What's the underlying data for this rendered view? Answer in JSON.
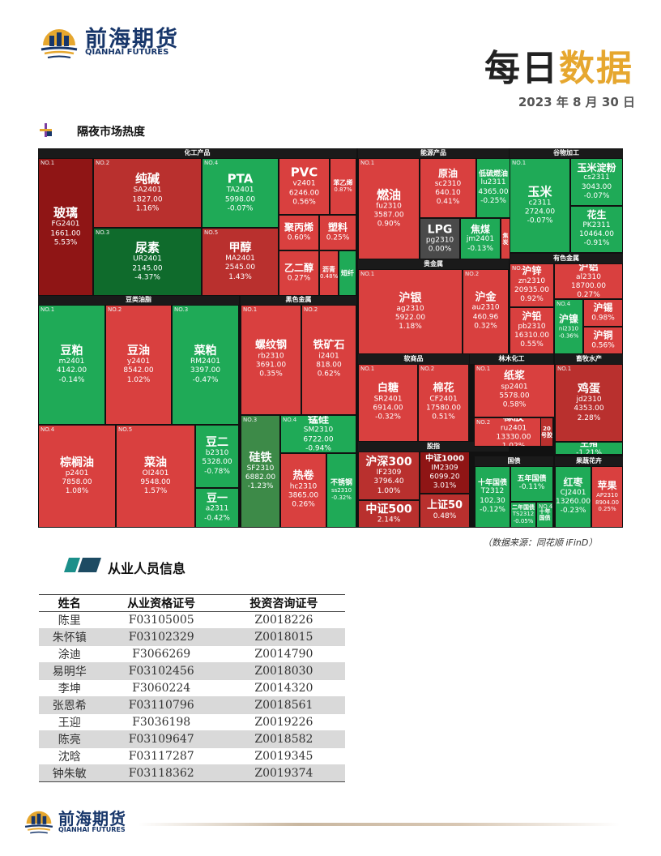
{
  "brand": {
    "name_cn": "前海期货",
    "name_en": "QIANHAI FUTURES"
  },
  "header": {
    "title_part1": "每日",
    "title_part2": "数据",
    "date": "2023 年 8 月 30 日"
  },
  "section1": {
    "title": "隔夜市场热度"
  },
  "heatmap": {
    "groups": {
      "chem": "化工产品",
      "energy": "能源产品",
      "grain": "谷物加工",
      "color_metal": "有色金属",
      "precious": "贵金属",
      "bean": "豆类油脂",
      "black": "黑色金属",
      "soft": "软商品",
      "forest": "林木化工",
      "animal": "畜牧水产",
      "stock": "股指",
      "bond": "国债",
      "fruit": "果蔬花卉"
    },
    "tiles": [
      {
        "no": "NO.1",
        "name": "玻璃",
        "code": "FG2401",
        "price": "1661.00",
        "pct": "5.53%"
      },
      {
        "no": "NO.2",
        "name": "纯碱",
        "code": "SA2401",
        "price": "1827.00",
        "pct": "1.16%"
      },
      {
        "no": "NO.3",
        "name": "尿素",
        "code": "UR2401",
        "price": "2145.00",
        "pct": "-4.37%"
      },
      {
        "no": "NO.4",
        "name": "PTA",
        "code": "TA2401",
        "price": "5998.00",
        "pct": "-0.07%"
      },
      {
        "no": "NO.5",
        "name": "甲醇",
        "code": "MA2401",
        "price": "2545.00",
        "pct": "1.43%"
      },
      {
        "no": "",
        "name": "PVC",
        "code": "v2401",
        "price": "6246.00",
        "pct": "0.56%"
      },
      {
        "no": "",
        "name": "苯乙烯",
        "code": "",
        "price": "",
        "pct": "0.87%"
      },
      {
        "no": "",
        "name": "聚丙烯",
        "code": "",
        "price": "",
        "pct": "0.60%"
      },
      {
        "no": "",
        "name": "塑料",
        "code": "",
        "price": "",
        "pct": "0.25%"
      },
      {
        "no": "",
        "name": "乙二醇",
        "code": "",
        "price": "",
        "pct": "0.27%"
      },
      {
        "no": "",
        "name": "沥青",
        "code": "",
        "price": "",
        "pct": "0.48%"
      },
      {
        "no": "",
        "name": "短纤",
        "code": "",
        "price": "",
        "pct": ""
      },
      {
        "no": "NO.1",
        "name": "燃油",
        "code": "fu2310",
        "price": "3587.00",
        "pct": "0.90%"
      },
      {
        "no": "",
        "name": "原油",
        "code": "sc2310",
        "price": "640.10",
        "pct": "0.41%"
      },
      {
        "no": "",
        "name": "低硫燃油",
        "code": "lu2311",
        "price": "4365.00",
        "pct": "-0.25%"
      },
      {
        "no": "",
        "name": "LPG",
        "code": "pg2310",
        "price": "0.00%",
        "pct": ""
      },
      {
        "no": "",
        "name": "焦煤",
        "code": "jm2401",
        "price": "-0.13%",
        "pct": ""
      },
      {
        "no": "",
        "name": "焦炭",
        "code": "",
        "price": "",
        "pct": ""
      },
      {
        "no": "NO.1",
        "name": "玉米",
        "code": "c2311",
        "price": "2724.00",
        "pct": "-0.07%"
      },
      {
        "no": "",
        "name": "玉米淀粉",
        "code": "cs2311",
        "price": "3043.00",
        "pct": "-0.07%"
      },
      {
        "no": "",
        "name": "花生",
        "code": "PK2311",
        "price": "10464.00",
        "pct": "-0.91%"
      },
      {
        "no": "NO.1",
        "name": "沪银",
        "code": "ag2310",
        "price": "5922.00",
        "pct": "1.18%"
      },
      {
        "no": "NO.2",
        "name": "沪金",
        "code": "au2310",
        "price": "460.96",
        "pct": "0.32%"
      },
      {
        "no": "NO.1",
        "name": "沪锌",
        "code": "zn2310",
        "price": "20935.00",
        "pct": "0.92%"
      },
      {
        "no": "",
        "name": "沪铝",
        "code": "al2310",
        "price": "18700.00",
        "pct": "0.27%"
      },
      {
        "no": "",
        "name": "沪铅",
        "code": "pb2310",
        "price": "16310.00",
        "pct": "0.55%"
      },
      {
        "no": "NO.4",
        "name": "沪镍",
        "code": "ni2310",
        "price": "-0.36%",
        "pct": ""
      },
      {
        "no": "",
        "name": "沪锡",
        "code": "",
        "price": "0.98%",
        "pct": ""
      },
      {
        "no": "",
        "name": "沪铜",
        "code": "",
        "price": "0.56%",
        "pct": ""
      },
      {
        "no": "NO.1",
        "name": "豆粕",
        "code": "m2401",
        "price": "4142.00",
        "pct": "-0.14%"
      },
      {
        "no": "NO.2",
        "name": "豆油",
        "code": "y2401",
        "price": "8542.00",
        "pct": "1.02%"
      },
      {
        "no": "NO.3",
        "name": "菜粕",
        "code": "RM2401",
        "price": "3397.00",
        "pct": "-0.47%"
      },
      {
        "no": "NO.4",
        "name": "棕榈油",
        "code": "p2401",
        "price": "7858.00",
        "pct": "1.08%"
      },
      {
        "no": "NO.5",
        "name": "菜油",
        "code": "OI2401",
        "price": "9548.00",
        "pct": "1.57%"
      },
      {
        "no": "",
        "name": "豆二",
        "code": "b2310",
        "price": "5328.00",
        "pct": "-0.78%"
      },
      {
        "no": "",
        "name": "豆一",
        "code": "a2311",
        "price": "-0.42%",
        "pct": ""
      },
      {
        "no": "NO.1",
        "name": "螺纹钢",
        "code": "rb2310",
        "price": "3691.00",
        "pct": "0.35%"
      },
      {
        "no": "NO.2",
        "name": "铁矿石",
        "code": "i2401",
        "price": "818.00",
        "pct": "0.62%"
      },
      {
        "no": "NO.3",
        "name": "硅铁",
        "code": "SF2310",
        "price": "6882.00",
        "pct": "-1.23%"
      },
      {
        "no": "NO.4",
        "name": "锰硅",
        "code": "SM2310",
        "price": "6722.00",
        "pct": "-0.94%"
      },
      {
        "no": "",
        "name": "热卷",
        "code": "hc2310",
        "price": "3865.00",
        "pct": "0.26%"
      },
      {
        "no": "",
        "name": "不锈钢",
        "code": "ss2310",
        "price": "-0.32%",
        "pct": ""
      },
      {
        "no": "NO.1",
        "name": "白糖",
        "code": "SR2401",
        "price": "6914.00",
        "pct": "-0.32%"
      },
      {
        "no": "NO.2",
        "name": "棉花",
        "code": "CF2401",
        "price": "17580.00",
        "pct": "0.51%"
      },
      {
        "no": "NO.1",
        "name": "纸浆",
        "code": "sp2401",
        "price": "5578.00",
        "pct": "0.58%"
      },
      {
        "no": "NO.2",
        "name": "橡胶",
        "code": "ru2401",
        "price": "13330.00",
        "pct": "1.02%"
      },
      {
        "no": "",
        "name": "20号胶",
        "code": "",
        "price": "",
        "pct": ""
      },
      {
        "no": "NO.1",
        "name": "鸡蛋",
        "code": "jd2310",
        "price": "4353.00",
        "pct": "2.28%"
      },
      {
        "no": "",
        "name": "生猪",
        "code": "-1.21%",
        "price": "",
        "pct": ""
      },
      {
        "no": "",
        "name": "沪深300",
        "code": "IF2309",
        "price": "3796.40",
        "pct": "1.00%"
      },
      {
        "no": "",
        "name": "中证1000",
        "code": "IM2309",
        "price": "6099.20",
        "pct": "3.01%"
      },
      {
        "no": "",
        "name": "中证500",
        "code": "2.14%",
        "price": "",
        "pct": ""
      },
      {
        "no": "",
        "name": "上证50",
        "code": "0.48%",
        "price": "",
        "pct": ""
      },
      {
        "no": "",
        "name": "十年国债",
        "code": "T2312",
        "price": "102.30",
        "pct": "-0.12%"
      },
      {
        "no": "",
        "name": "五年国债",
        "code": "-0.11%",
        "price": "",
        "pct": ""
      },
      {
        "no": "",
        "name": "二年国债",
        "code": "TS2312",
        "price": "-0.05%",
        "pct": ""
      },
      {
        "no": "NO.4",
        "name": "十年国债",
        "code": "",
        "price": "",
        "pct": ""
      },
      {
        "no": "",
        "name": "红枣",
        "code": "CJ2401",
        "price": "13260.00",
        "pct": "-0.23%"
      },
      {
        "no": "",
        "name": "苹果",
        "code": "AP2310",
        "price": "8904.00",
        "pct": "0.25%"
      }
    ]
  },
  "source_note": "（数据来源：同花顺 iFinD）",
  "section2": {
    "title": "从业人员信息"
  },
  "staff_table": {
    "headers": [
      "姓名",
      "从业资格证号",
      "投资咨询证号"
    ],
    "rows": [
      [
        "陈里",
        "F03105005",
        "Z0018226"
      ],
      [
        "朱怀镇",
        "F03102329",
        "Z0018015"
      ],
      [
        "涂迪",
        "F3066269",
        "Z0014790"
      ],
      [
        "易明华",
        "F03102456",
        "Z0018030"
      ],
      [
        "李坤",
        "F3060224",
        "Z0014320"
      ],
      [
        "张恩希",
        "F03110796",
        "Z0018561"
      ],
      [
        "王迎",
        "F3036198",
        "Z0019226"
      ],
      [
        "陈亮",
        "F03109647",
        "Z0018582"
      ],
      [
        "沈晗",
        "F03117287",
        "Z0019345"
      ],
      [
        "钟朱敏",
        "F03118362",
        "Z0019374"
      ]
    ]
  },
  "colors": {
    "brand_navy": "#17366a",
    "accent_gold": "#e6a72f",
    "up_red": "#d9403f",
    "down_green": "#1faa57"
  }
}
